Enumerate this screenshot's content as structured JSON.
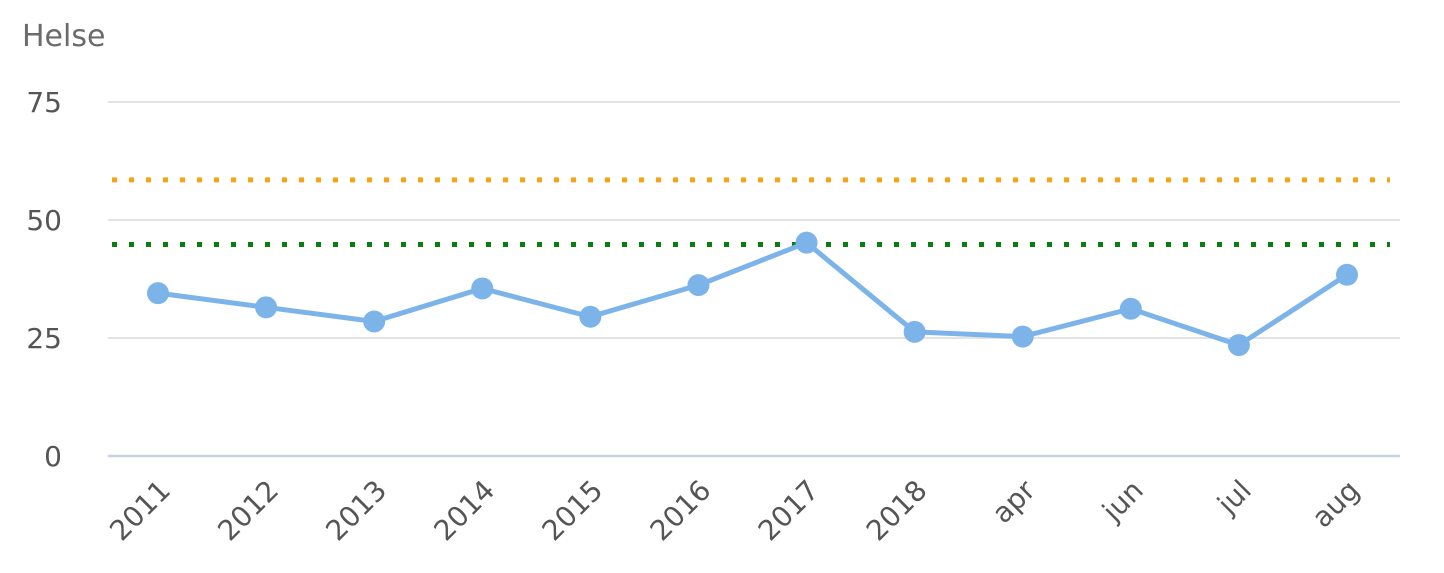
{
  "chart_data": {
    "type": "line",
    "title": "Helse",
    "categories": [
      "2011",
      "2012",
      "2013",
      "2014",
      "2015",
      "2016",
      "2017",
      "2018",
      "apr",
      "jun",
      "jul",
      "aug"
    ],
    "series": [
      {
        "values": [
          34.5,
          31.5,
          28.5,
          35.5,
          29.5,
          36.2,
          45.2,
          26.3,
          25.3,
          31.2,
          23.5,
          38.4
        ],
        "color": "#7cb4ea"
      }
    ],
    "reference_lines": [
      {
        "value": 58.5,
        "color": "#f5a511",
        "style": "dotted"
      },
      {
        "value": 44.8,
        "color": "#0a7d10",
        "style": "dotted"
      }
    ],
    "ylim": [
      0,
      75
    ],
    "yticks": [
      0,
      25,
      50,
      75
    ],
    "grid": true,
    "legend": "none"
  }
}
